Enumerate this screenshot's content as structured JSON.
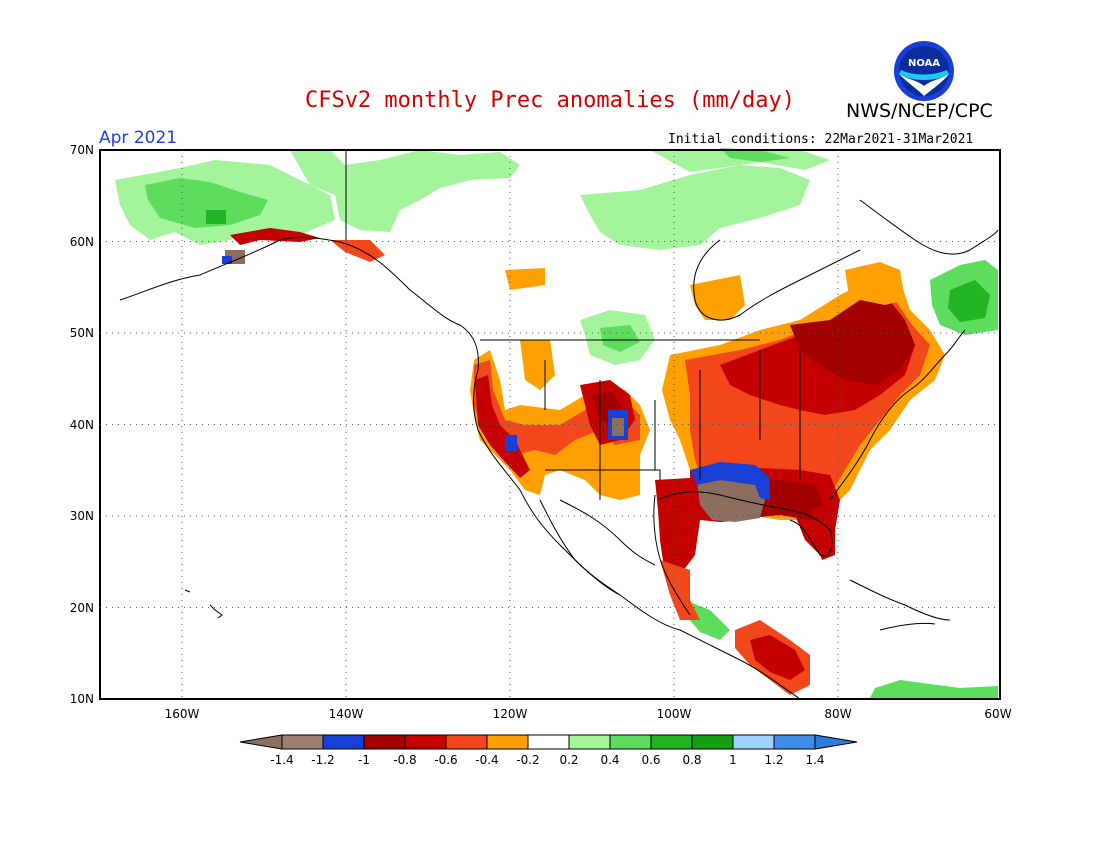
{
  "title": "CFSv2 monthly Prec anomalies (mm/day)",
  "org": "NWS/NCEP/CPC",
  "logo_text": "NOAA",
  "month": "Apr 2021",
  "init_conditions": "Initial conditions: 22Mar2021-31Mar2021",
  "lat_ticks": [
    "70N",
    "60N",
    "50N",
    "40N",
    "30N",
    "20N",
    "10N"
  ],
  "lon_ticks": [
    "160W",
    "140W",
    "120W",
    "100W",
    "80W",
    "60W"
  ],
  "colorbar": {
    "labels": [
      "-1.4",
      "-1.2",
      "-1",
      "-0.8",
      "-0.6",
      "-0.4",
      "-0.2",
      "0.2",
      "0.4",
      "0.6",
      "0.8",
      "1",
      "1.2",
      "1.4"
    ],
    "colors": [
      "#8b6e5e",
      "#9c7f72",
      "#1a3fd6",
      "#a30000",
      "#c40000",
      "#f2461b",
      "#ff9f00",
      "#ffffff",
      "#a3f49a",
      "#5ddc5d",
      "#23b423",
      "#139e13",
      "#9fd3ff",
      "#3f8de8",
      "#2f7be0"
    ]
  },
  "colors": {
    "title": "#d40000",
    "month": "#1f3ee0",
    "dry_strong": "#a30000",
    "dry": "#c40000",
    "dry_mid": "#f2461b",
    "dry_light": "#ff9f00",
    "wet_light": "#a3f49a",
    "wet_mid": "#5ddc5d",
    "wet": "#23b423",
    "very_dry": "#8b6e5e",
    "blue": "#1a3fd6"
  }
}
